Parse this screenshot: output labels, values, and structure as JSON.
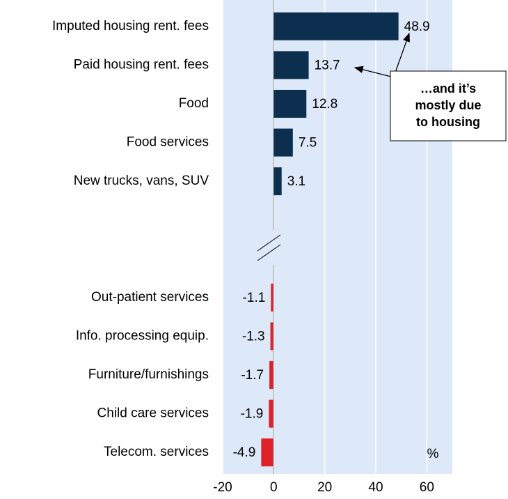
{
  "chart_data": {
    "type": "hbar",
    "categories": [
      "Imputed housing rent. fees",
      "Paid housing rent. fees",
      "Food",
      "Food services",
      "New trucks, vans, SUV",
      null,
      null,
      "Out-patient services",
      "Info. processing equip.",
      "Furniture/furnishings",
      "Child care services",
      "Telecom. services"
    ],
    "values": [
      48.9,
      13.7,
      12.8,
      7.5,
      3.1,
      null,
      null,
      -1.1,
      -1.3,
      -1.7,
      -1.9,
      -4.9
    ],
    "positive_color": "#0d2f4f",
    "negative_color": "#e0202a",
    "xlim": [
      -20,
      70
    ],
    "xticks": [
      -20,
      0,
      20,
      40,
      60
    ],
    "grid": true,
    "unit_label": "%",
    "annotation": [
      "…and it’s",
      "mostly due",
      "to housing"
    ]
  }
}
